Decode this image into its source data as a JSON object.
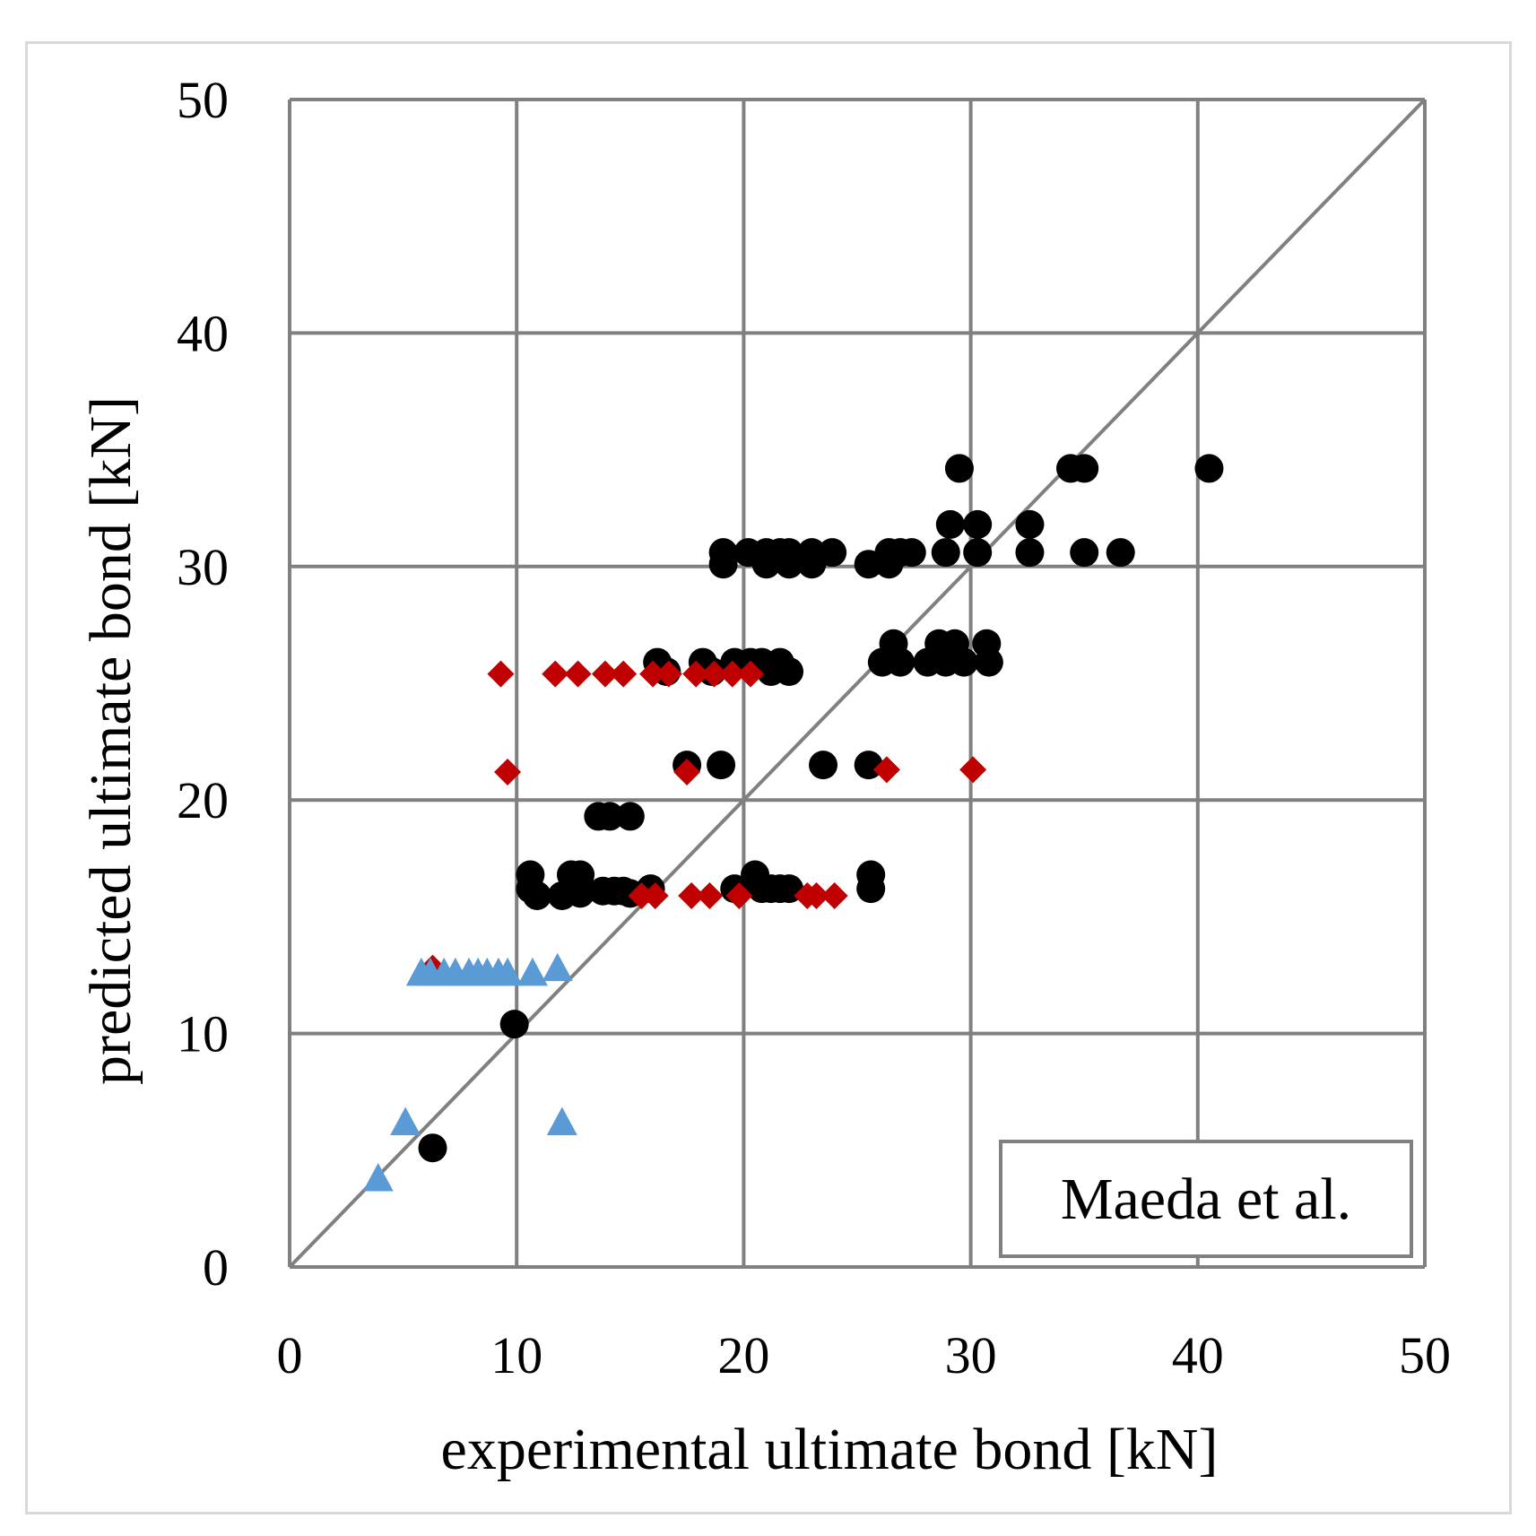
{
  "chart_data": {
    "type": "scatter",
    "title": "",
    "xlabel": "experimental ultimate bond [kN]",
    "ylabel": "predicted ultimate bond [kN]",
    "xlim": [
      0,
      50
    ],
    "ylim": [
      0,
      50
    ],
    "x_ticks": [
      "0",
      "10",
      "20",
      "30",
      "40",
      "50"
    ],
    "y_ticks": [
      "0",
      "10",
      "20",
      "30",
      "40",
      "50"
    ],
    "grid": true,
    "legend": {
      "text": "Maeda et al.",
      "position": "bottom-right"
    },
    "reference_line": {
      "x": [
        0,
        50
      ],
      "y": [
        0,
        50
      ],
      "color": "#808080"
    },
    "series": [
      {
        "name": "circle",
        "marker": "circle",
        "color": "#000000",
        "points": [
          [
            6.3,
            5.1
          ],
          [
            9.9,
            10.4
          ],
          [
            10.6,
            16.8
          ],
          [
            10.6,
            16.2
          ],
          [
            10.9,
            15.9
          ],
          [
            12.0,
            15.9
          ],
          [
            12.4,
            16.8
          ],
          [
            12.8,
            16.8
          ],
          [
            12.8,
            16.0
          ],
          [
            13.8,
            16.1
          ],
          [
            14.3,
            16.1
          ],
          [
            14.7,
            16.1
          ],
          [
            15.0,
            16.0
          ],
          [
            15.9,
            16.2
          ],
          [
            13.6,
            19.3
          ],
          [
            14.1,
            19.3
          ],
          [
            15.0,
            19.3
          ],
          [
            17.5,
            21.5
          ],
          [
            19.0,
            21.5
          ],
          [
            23.5,
            21.5
          ],
          [
            25.5,
            21.5
          ],
          [
            16.2,
            25.9
          ],
          [
            16.6,
            25.5
          ],
          [
            18.2,
            25.9
          ],
          [
            18.6,
            25.5
          ],
          [
            19.6,
            25.9
          ],
          [
            20.3,
            25.9
          ],
          [
            20.8,
            25.9
          ],
          [
            21.2,
            25.5
          ],
          [
            21.6,
            25.9
          ],
          [
            22.0,
            25.5
          ],
          [
            26.1,
            25.9
          ],
          [
            26.6,
            26.7
          ],
          [
            26.9,
            25.9
          ],
          [
            28.1,
            25.9
          ],
          [
            28.6,
            26.7
          ],
          [
            28.9,
            25.9
          ],
          [
            29.3,
            26.7
          ],
          [
            29.7,
            25.9
          ],
          [
            30.7,
            26.7
          ],
          [
            30.8,
            25.9
          ],
          [
            19.1,
            30.6
          ],
          [
            19.1,
            30.1
          ],
          [
            20.2,
            30.6
          ],
          [
            21.0,
            30.6
          ],
          [
            21.0,
            30.1
          ],
          [
            21.6,
            30.6
          ],
          [
            22.0,
            30.1
          ],
          [
            22.0,
            30.6
          ],
          [
            23.0,
            30.1
          ],
          [
            23.0,
            30.6
          ],
          [
            23.9,
            30.6
          ],
          [
            25.5,
            30.1
          ],
          [
            26.4,
            30.1
          ],
          [
            26.4,
            30.6
          ],
          [
            26.9,
            30.6
          ],
          [
            27.4,
            30.6
          ],
          [
            28.9,
            30.6
          ],
          [
            29.1,
            31.8
          ],
          [
            30.3,
            31.8
          ],
          [
            30.3,
            30.6
          ],
          [
            32.6,
            31.8
          ],
          [
            32.6,
            30.6
          ],
          [
            35.0,
            30.6
          ],
          [
            36.6,
            30.6
          ],
          [
            29.5,
            34.2
          ],
          [
            34.4,
            34.2
          ],
          [
            35.0,
            34.2
          ],
          [
            40.5,
            34.2
          ],
          [
            20.5,
            16.8
          ],
          [
            20.8,
            16.2
          ],
          [
            21.2,
            16.2
          ],
          [
            21.6,
            16.2
          ],
          [
            22.0,
            16.2
          ],
          [
            19.6,
            16.2
          ],
          [
            25.6,
            16.8
          ],
          [
            25.6,
            16.2
          ]
        ]
      },
      {
        "name": "diamond",
        "marker": "diamond",
        "color": "#c00000",
        "points": [
          [
            6.3,
            12.8
          ],
          [
            9.3,
            25.4
          ],
          [
            11.7,
            25.4
          ],
          [
            12.7,
            25.4
          ],
          [
            13.9,
            25.4
          ],
          [
            14.7,
            25.4
          ],
          [
            16.0,
            25.4
          ],
          [
            16.7,
            25.4
          ],
          [
            17.9,
            25.4
          ],
          [
            18.7,
            25.4
          ],
          [
            19.5,
            25.4
          ],
          [
            20.3,
            25.4
          ],
          [
            9.6,
            21.2
          ],
          [
            17.5,
            21.2
          ],
          [
            26.3,
            21.3
          ],
          [
            30.1,
            21.3
          ],
          [
            15.5,
            15.9
          ],
          [
            16.1,
            15.9
          ],
          [
            17.7,
            15.9
          ],
          [
            18.5,
            15.9
          ],
          [
            19.8,
            15.9
          ],
          [
            22.8,
            15.9
          ],
          [
            23.2,
            15.9
          ],
          [
            24.0,
            15.9
          ]
        ]
      },
      {
        "name": "triangle",
        "marker": "triangle",
        "color": "#5b9bd5",
        "points": [
          [
            3.9,
            3.8
          ],
          [
            5.1,
            6.2
          ],
          [
            12.0,
            6.2
          ],
          [
            5.8,
            12.6
          ],
          [
            6.2,
            12.6
          ],
          [
            6.8,
            12.6
          ],
          [
            7.3,
            12.6
          ],
          [
            7.9,
            12.6
          ],
          [
            8.3,
            12.6
          ],
          [
            8.7,
            12.6
          ],
          [
            9.2,
            12.6
          ],
          [
            9.6,
            12.6
          ],
          [
            10.7,
            12.6
          ],
          [
            11.8,
            12.8
          ]
        ]
      }
    ]
  }
}
